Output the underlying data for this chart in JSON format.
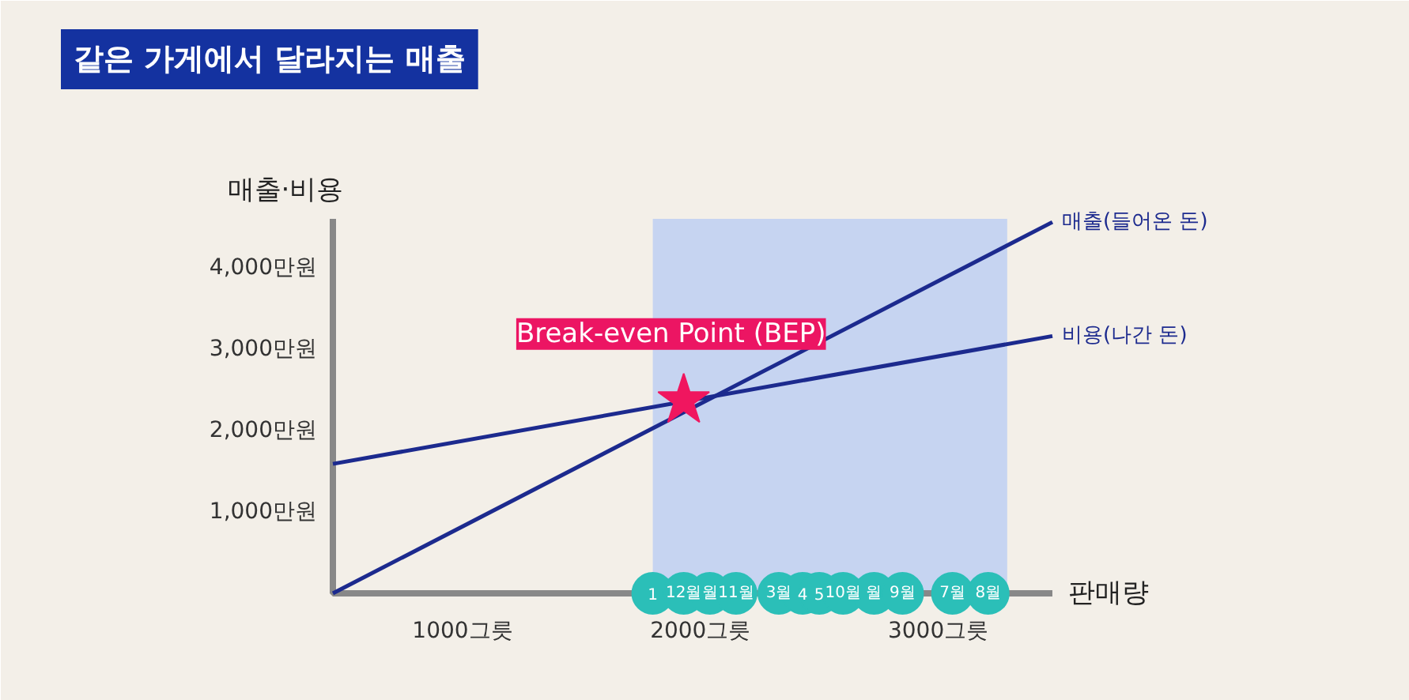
{
  "chart_data": {
    "type": "line",
    "title": "같은 가게에서 달라지는 매출",
    "xlabel": "판매량",
    "ylabel": "매출·비용",
    "xlim": [
      455,
      3480
    ],
    "ylim": [
      0,
      4600
    ],
    "xticks": [
      {
        "value": 1000,
        "label": "1000그릇"
      },
      {
        "value": 2000,
        "label": "2000그릇"
      },
      {
        "value": 3000,
        "label": "3000그릇"
      }
    ],
    "yticks": [
      {
        "value": 1000,
        "label": "1,000만원"
      },
      {
        "value": 2000,
        "label": "2,000만원"
      },
      {
        "value": 3000,
        "label": "3,000만원"
      },
      {
        "value": 4000,
        "label": "4,000만원"
      }
    ],
    "grid": false,
    "legend": "right",
    "marker": "none",
    "line_style": "solid",
    "series": [
      {
        "name": "매출(들어온 돈)",
        "color": "#1c2a8e",
        "x": [
          455,
          3480
        ],
        "values": [
          0,
          4560
        ]
      },
      {
        "name": "비용(나간 돈)",
        "color": "#1c2a8e",
        "x": [
          455,
          3480
        ],
        "values": [
          1590,
          3160
        ]
      },
      {
        "type": "scatter",
        "marker": "star",
        "color": "#f0165f",
        "x": [
          1930
        ],
        "values": [
          2370
        ]
      },
      {
        "type": "scatter",
        "marker": "circle",
        "color": "#2bbfb8",
        "x": [
          1800,
          1930,
          2040,
          2150,
          2330,
          2430,
          2500,
          2600,
          2730,
          2850,
          3060,
          3210
        ],
        "values": [
          0,
          0,
          0,
          0,
          0,
          0,
          0,
          0,
          0,
          0,
          0,
          0
        ]
      }
    ],
    "bands": [
      {
        "axis": "x",
        "from": 1800,
        "to": 3290,
        "color": "#c6d4f1"
      }
    ],
    "annotations": [
      {
        "text": "Break-even Point (BEP)",
        "x": 1930,
        "y": 2370
      },
      {
        "text": "1",
        "x": 1800,
        "y": 0
      },
      {
        "text": "12월",
        "x": 1930,
        "y": 0
      },
      {
        "text": "월",
        "x": 2040,
        "y": 0
      },
      {
        "text": "11월",
        "x": 2150,
        "y": 0
      },
      {
        "text": "3월",
        "x": 2330,
        "y": 0
      },
      {
        "text": "4",
        "x": 2430,
        "y": 0
      },
      {
        "text": "5",
        "x": 2500,
        "y": 0
      },
      {
        "text": "10월",
        "x": 2600,
        "y": 0
      },
      {
        "text": "월",
        "x": 2730,
        "y": 0
      },
      {
        "text": "9월",
        "x": 2850,
        "y": 0
      },
      {
        "text": "7월",
        "x": 3060,
        "y": 0
      },
      {
        "text": "8월",
        "x": 3210,
        "y": 0
      }
    ]
  }
}
